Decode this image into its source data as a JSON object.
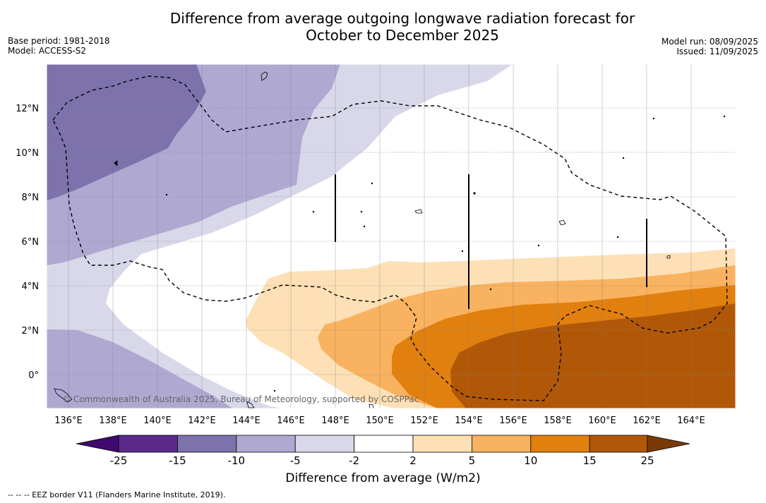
{
  "title": {
    "line1": "Difference from average outgoing longwave radiation forecast for",
    "line2": "October to December 2025"
  },
  "meta": {
    "base_period": "Base period: 1981-2018",
    "model": "Model: ACCESS-S2",
    "model_run": "Model run: 08/09/2025",
    "issued": "Issued: 11/09/2025"
  },
  "map": {
    "lat_labels": [
      "12°N",
      "10°N",
      "8°N",
      "6°N",
      "4°N",
      "2°N",
      "0°"
    ],
    "lon_labels": [
      "136°E",
      "138°E",
      "140°E",
      "142°E",
      "144°E",
      "146°E",
      "148°E",
      "150°E",
      "152°E",
      "154°E",
      "156°E",
      "158°E",
      "160°E",
      "162°E",
      "164°E"
    ],
    "copyright": "© Commonwealth of Australia 2025, Bureau of Meteorology, supported by COSPPac"
  },
  "colorbar": {
    "title": "Difference from average (W/m2)",
    "labels": [
      "-25",
      "-15",
      "-10",
      "-5",
      "-2",
      "2",
      "5",
      "10",
      "15",
      "25"
    ],
    "colors": [
      "#3f0a6e",
      "#5a2a8a",
      "#7d72ac",
      "#afa9d2",
      "#d8d8ea",
      "#ffffff",
      "#fde0b6",
      "#f9b25f",
      "#e1800f",
      "#b15808",
      "#7a3a06"
    ]
  },
  "footnote": "--  --  -- EEZ border V11 (Flanders Marine Institute, 2019)."
}
